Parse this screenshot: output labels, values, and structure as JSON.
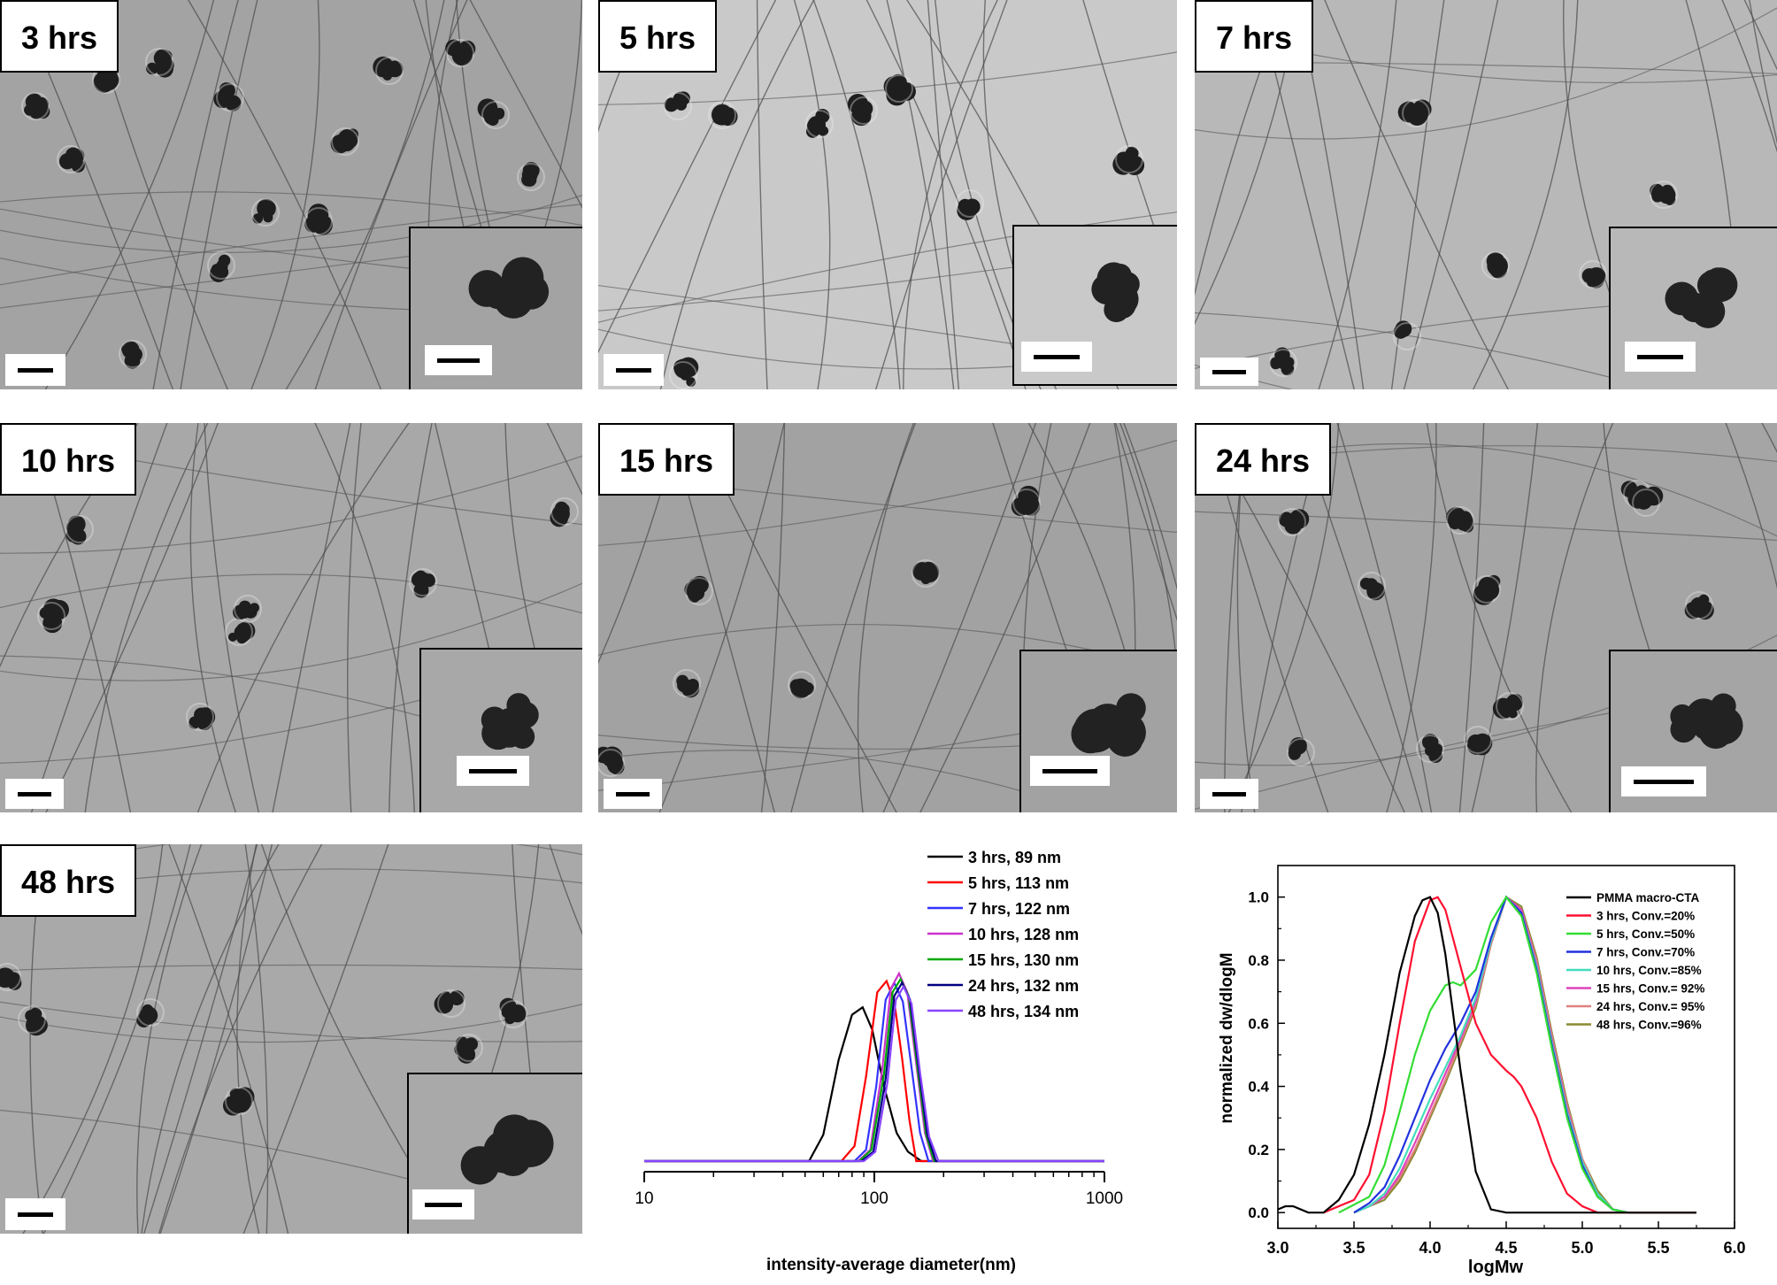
{
  "panels": [
    {
      "label": "3 hrs"
    },
    {
      "label": "5 hrs"
    },
    {
      "label": "7 hrs"
    },
    {
      "label": "10 hrs"
    },
    {
      "label": "15 hrs"
    },
    {
      "label": "24 hrs"
    },
    {
      "label": "48 hrs"
    }
  ],
  "chart_data": [
    {
      "type": "line",
      "xlabel": "intensity-average diameter(nm)",
      "ylabel": "",
      "xscale": "log",
      "xlim": [
        10,
        1000
      ],
      "xticks": [
        "10",
        "100",
        "1000"
      ],
      "legend_placement": "top-right",
      "series": [
        {
          "name": "3 hrs, 89 nm",
          "color": "#000000",
          "x": [
            10,
            52,
            60,
            70,
            80,
            89,
            98,
            110,
            125,
            140,
            160,
            1000
          ],
          "y": [
            0,
            0,
            0.14,
            0.54,
            0.78,
            0.82,
            0.7,
            0.4,
            0.15,
            0.05,
            0,
            0
          ]
        },
        {
          "name": "5 hrs, 113 nm",
          "color": "#ff0000",
          "x": [
            10,
            72,
            82,
            92,
            103,
            113,
            122,
            132,
            142,
            152,
            1000
          ],
          "y": [
            0,
            0,
            0.08,
            0.45,
            0.9,
            0.96,
            0.85,
            0.55,
            0.22,
            0,
            0
          ]
        },
        {
          "name": "7 hrs, 122 nm",
          "color": "#3333ff",
          "x": [
            10,
            82,
            92,
            102,
            112,
            122,
            133,
            145,
            158,
            172,
            1000
          ],
          "y": [
            0,
            0,
            0.06,
            0.4,
            0.86,
            0.95,
            0.85,
            0.5,
            0.15,
            0,
            0
          ]
        },
        {
          "name": "10 hrs, 128 nm",
          "color": "#cc33cc",
          "x": [
            10,
            85,
            96,
            108,
            118,
            128,
            139,
            152,
            166,
            180,
            1000
          ],
          "y": [
            0,
            0,
            0.06,
            0.48,
            0.92,
            1.0,
            0.9,
            0.52,
            0.15,
            0,
            0
          ]
        },
        {
          "name": "15 hrs, 130 nm",
          "color": "#00aa00",
          "x": [
            10,
            86,
            97,
            110,
            120,
            130,
            141,
            154,
            168,
            182,
            1000
          ],
          "y": [
            0,
            0,
            0.06,
            0.46,
            0.9,
            0.97,
            0.88,
            0.5,
            0.14,
            0,
            0
          ]
        },
        {
          "name": "24 hrs, 132 nm",
          "color": "#000080",
          "x": [
            10,
            88,
            99,
            112,
            122,
            132,
            143,
            156,
            170,
            185,
            1000
          ],
          "y": [
            0,
            0,
            0.05,
            0.44,
            0.88,
            0.95,
            0.86,
            0.49,
            0.14,
            0,
            0
          ]
        },
        {
          "name": "48 hrs, 134 nm",
          "color": "#8844ff",
          "x": [
            10,
            90,
            101,
            114,
            124,
            134,
            145,
            158,
            173,
            190,
            1000
          ],
          "y": [
            0,
            0,
            0.05,
            0.42,
            0.86,
            0.93,
            0.84,
            0.47,
            0.13,
            0,
            0
          ]
        }
      ]
    },
    {
      "type": "line",
      "xlabel": "logMw",
      "ylabel": "normalized dw/dlogM",
      "xlim": [
        3.0,
        6.0
      ],
      "ylim": [
        -0.05,
        1.1
      ],
      "xticks": [
        "3.0",
        "3.5",
        "4.0",
        "4.5",
        "5.0",
        "5.5",
        "6.0"
      ],
      "yticks": [
        "0.0",
        "0.2",
        "0.4",
        "0.6",
        "0.8",
        "1.0"
      ],
      "legend_placement": "top-right",
      "series": [
        {
          "name": "PMMA macro-CTA",
          "color": "#000000",
          "x": [
            3.0,
            3.05,
            3.1,
            3.2,
            3.3,
            3.4,
            3.5,
            3.6,
            3.7,
            3.8,
            3.9,
            3.95,
            4.0,
            4.05,
            4.1,
            4.2,
            4.3,
            4.4,
            4.5,
            5.75
          ],
          "y": [
            0.01,
            0.02,
            0.02,
            0.0,
            0.0,
            0.04,
            0.12,
            0.28,
            0.5,
            0.76,
            0.94,
            0.99,
            1.0,
            0.95,
            0.82,
            0.45,
            0.13,
            0.01,
            0,
            0
          ]
        },
        {
          "name": "3 hrs, Conv.=20%",
          "color": "#ff1030",
          "x": [
            3.3,
            3.5,
            3.6,
            3.7,
            3.8,
            3.9,
            4.0,
            4.05,
            4.1,
            4.2,
            4.3,
            4.4,
            4.5,
            4.55,
            4.6,
            4.7,
            4.8,
            4.9,
            5.0,
            5.1,
            5.2,
            5.75
          ],
          "y": [
            0,
            0.04,
            0.12,
            0.32,
            0.6,
            0.86,
            0.99,
            1.0,
            0.96,
            0.78,
            0.6,
            0.5,
            0.45,
            0.43,
            0.4,
            0.3,
            0.16,
            0.06,
            0.02,
            0.0,
            0,
            0
          ]
        },
        {
          "name": "5 hrs, Conv.=50%",
          "color": "#33dd33",
          "x": [
            3.4,
            3.6,
            3.7,
            3.8,
            3.9,
            4.0,
            4.1,
            4.15,
            4.2,
            4.3,
            4.4,
            4.5,
            4.6,
            4.7,
            4.8,
            4.9,
            5.0,
            5.1,
            5.2,
            5.3,
            5.75
          ],
          "y": [
            0,
            0.05,
            0.15,
            0.32,
            0.5,
            0.64,
            0.72,
            0.73,
            0.72,
            0.77,
            0.92,
            1.0,
            0.94,
            0.76,
            0.52,
            0.3,
            0.14,
            0.05,
            0.01,
            0,
            0
          ]
        },
        {
          "name": "7 hrs, Conv.=70%",
          "color": "#2233dd",
          "x": [
            3.5,
            3.6,
            3.7,
            3.8,
            3.9,
            4.0,
            4.1,
            4.2,
            4.3,
            4.4,
            4.5,
            4.6,
            4.7,
            4.8,
            4.9,
            5.0,
            5.1,
            5.2,
            5.3,
            5.75
          ],
          "y": [
            0,
            0.03,
            0.08,
            0.18,
            0.3,
            0.42,
            0.52,
            0.6,
            0.7,
            0.87,
            1.0,
            0.95,
            0.77,
            0.53,
            0.31,
            0.15,
            0.05,
            0.01,
            0,
            0
          ]
        },
        {
          "name": "10 hrs, Conv.=85%",
          "color": "#44ddbb",
          "x": [
            3.5,
            3.6,
            3.7,
            3.8,
            3.9,
            4.0,
            4.1,
            4.2,
            4.3,
            4.4,
            4.5,
            4.6,
            4.7,
            4.8,
            4.9,
            5.0,
            5.1,
            5.2,
            5.3,
            5.75
          ],
          "y": [
            0,
            0.02,
            0.06,
            0.14,
            0.25,
            0.36,
            0.46,
            0.56,
            0.68,
            0.86,
            1.0,
            0.95,
            0.78,
            0.54,
            0.32,
            0.16,
            0.06,
            0.01,
            0,
            0
          ]
        },
        {
          "name": "15 hrs, Conv.= 92%",
          "color": "#dd44bb",
          "x": [
            3.5,
            3.6,
            3.7,
            3.8,
            3.9,
            4.0,
            4.1,
            4.2,
            4.3,
            4.4,
            4.5,
            4.6,
            4.7,
            4.8,
            4.9,
            5.0,
            5.1,
            5.2,
            5.3,
            5.75
          ],
          "y": [
            0,
            0.02,
            0.05,
            0.12,
            0.22,
            0.33,
            0.44,
            0.55,
            0.67,
            0.86,
            1.0,
            0.96,
            0.79,
            0.55,
            0.33,
            0.16,
            0.06,
            0.01,
            0,
            0
          ]
        },
        {
          "name": "24 hrs, Conv.= 95%",
          "color": "#e08080",
          "x": [
            3.5,
            3.6,
            3.7,
            3.8,
            3.9,
            4.0,
            4.1,
            4.2,
            4.3,
            4.4,
            4.5,
            4.6,
            4.7,
            4.8,
            4.9,
            5.0,
            5.1,
            5.2,
            5.3,
            5.75
          ],
          "y": [
            0,
            0.02,
            0.05,
            0.11,
            0.2,
            0.31,
            0.42,
            0.54,
            0.66,
            0.85,
            1.0,
            0.96,
            0.8,
            0.56,
            0.34,
            0.17,
            0.06,
            0.01,
            0,
            0
          ]
        },
        {
          "name": "48 hrs, Conv.=96%",
          "color": "#8a8a30",
          "x": [
            3.5,
            3.6,
            3.7,
            3.8,
            3.9,
            4.0,
            4.1,
            4.2,
            4.3,
            4.4,
            4.5,
            4.6,
            4.7,
            4.8,
            4.9,
            5.0,
            5.1,
            5.2,
            5.3,
            5.75
          ],
          "y": [
            0,
            0.02,
            0.04,
            0.1,
            0.19,
            0.3,
            0.41,
            0.53,
            0.65,
            0.85,
            1.0,
            0.97,
            0.81,
            0.57,
            0.35,
            0.17,
            0.07,
            0.01,
            0,
            0
          ]
        }
      ]
    }
  ]
}
